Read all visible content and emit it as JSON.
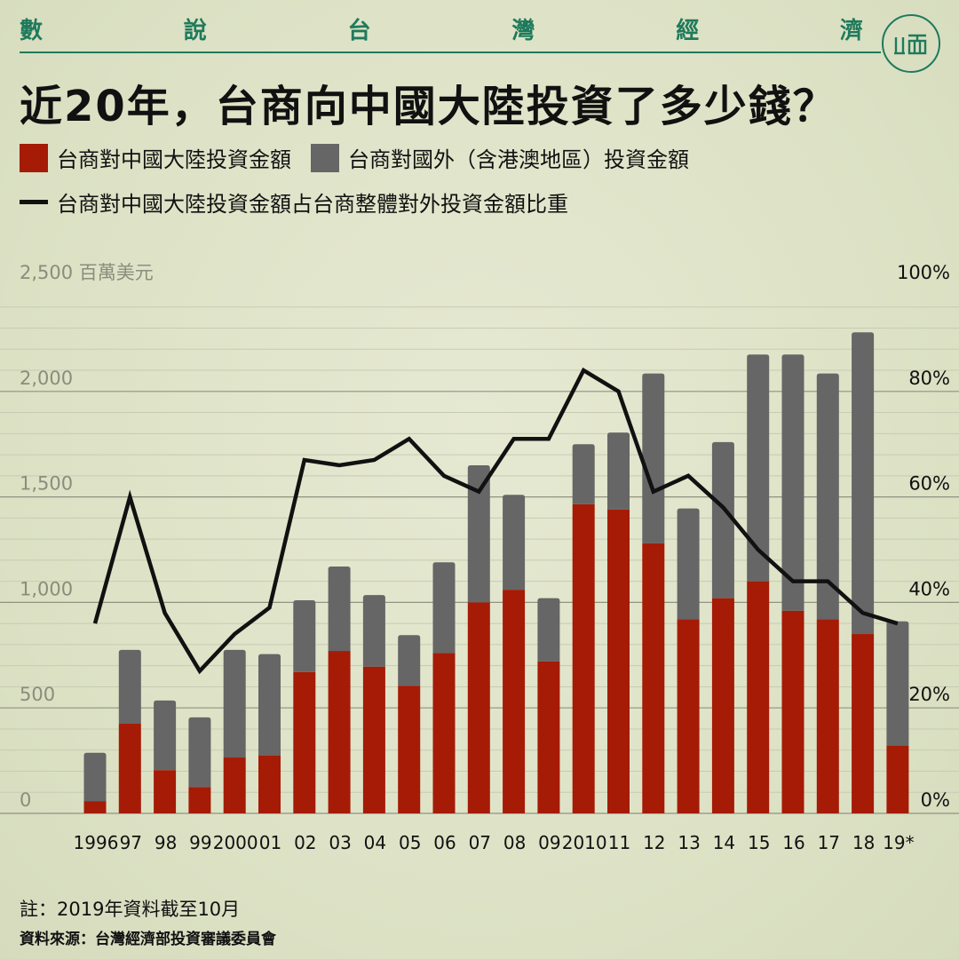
{
  "header": {
    "series_chars": [
      "數",
      "說",
      "台",
      "灣",
      "經",
      "濟"
    ],
    "logo_text": "端"
  },
  "title": "近20年，台商向中國大陸投資了多少錢？",
  "legend": {
    "mainland": "台商對中國大陸投資金額",
    "abroad": "台商對國外（含港澳地區）投資金額",
    "share": "台商對中國大陸投資金額占台商整體對外投資金額比重"
  },
  "colors": {
    "mainland": "#a51b06",
    "abroad": "#666666",
    "line": "#111111",
    "accent": "#1f7a5c"
  },
  "chart_data": {
    "type": "bar",
    "stacked": true,
    "categories": [
      "1996",
      "97",
      "98",
      "99",
      "2000",
      "01",
      "02",
      "03",
      "04",
      "05",
      "06",
      "07",
      "08",
      "09",
      "2010",
      "11",
      "12",
      "13",
      "14",
      "15",
      "16",
      "17",
      "18",
      "19*"
    ],
    "series": [
      {
        "name": "台商對中國大陸投資金額",
        "values": [
          57,
          425,
          205,
          125,
          265,
          275,
          670,
          770,
          695,
          605,
          760,
          1000,
          1060,
          720,
          1465,
          1440,
          1280,
          920,
          1020,
          1100,
          960,
          920,
          850,
          320
        ]
      },
      {
        "name": "台商對國外（含港澳地區）投資金額",
        "values": [
          230,
          350,
          330,
          330,
          510,
          480,
          340,
          400,
          340,
          240,
          430,
          650,
          450,
          300,
          285,
          365,
          805,
          525,
          740,
          1075,
          1215,
          1165,
          1430,
          590
        ]
      },
      {
        "name": "台商對中國大陸投資金額占台商整體對外投資金額比重",
        "axis": "right",
        "values": [
          36,
          60,
          38,
          27,
          34,
          39,
          67,
          66,
          67,
          71,
          64,
          61,
          71,
          71,
          84,
          80,
          61,
          64,
          58,
          50,
          44,
          44,
          38,
          36
        ]
      }
    ],
    "ylim": [
      0,
      2500
    ],
    "y2lim": [
      0,
      100
    ],
    "y_ticks": [
      "0",
      "500",
      "1,000",
      "1,500",
      "2,000",
      "2,500"
    ],
    "y_ticks_values": [
      0,
      500,
      1000,
      1500,
      2000,
      2500
    ],
    "y2_ticks": [
      "0%",
      "20%",
      "40%",
      "60%",
      "80%",
      "100%"
    ],
    "y2_ticks_values": [
      0,
      20,
      40,
      60,
      80,
      100
    ],
    "ylabel": "百萬美元",
    "grid": true
  },
  "footer": {
    "note": "註：2019年資料截至10月",
    "source": "資料來源：台灣經濟部投資審議委員會"
  }
}
